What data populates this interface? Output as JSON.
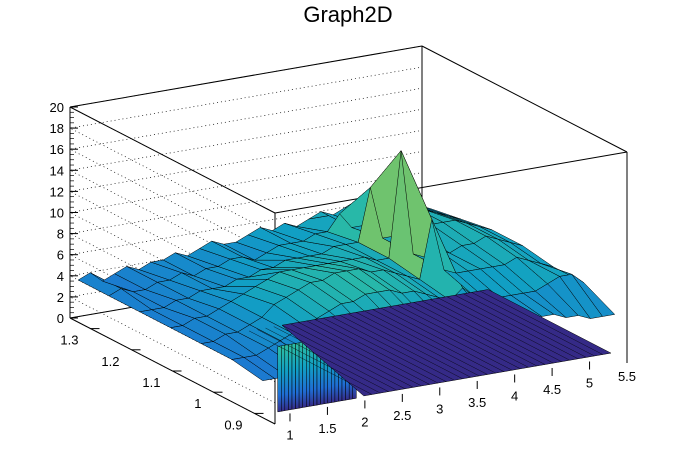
{
  "chart_data": {
    "type": "surface",
    "title": "Graph2D",
    "x_ticks": [
      "1",
      "1.5",
      "2",
      "2.5",
      "3",
      "3.5",
      "4",
      "4.5",
      "5",
      "5.5"
    ],
    "y_ticks": [
      "0.9",
      "1",
      "1.1",
      "1.2",
      "1.3"
    ],
    "z_ticks": [
      "0",
      "2",
      "4",
      "6",
      "8",
      "10",
      "12",
      "14",
      "16",
      "18",
      "20"
    ],
    "xlim": [
      0.8,
      5.5
    ],
    "ylim": [
      0.85,
      1.35
    ],
    "zlim": [
      0,
      20
    ],
    "colormap": [
      "#352a87",
      "#1f6dd4",
      "#119fc4",
      "#2ebfa1",
      "#9dc64a",
      "#f3c52d",
      "#f9fb0e"
    ],
    "grid": true,
    "surface_z_rows": [
      [
        4,
        4.5,
        3.5,
        4,
        4.5,
        4,
        4.5,
        4.5,
        5,
        4.5,
        5,
        5.5,
        5,
        5,
        5.5,
        6,
        5.5,
        6,
        5.5,
        6,
        6.5,
        6,
        6.5,
        7,
        6.5,
        6.5,
        7,
        6,
        5.5,
        5
      ],
      [
        4,
        4.5,
        4,
        4,
        4.5,
        4.5,
        5,
        4.5,
        5,
        5,
        5.5,
        5.5,
        5,
        5.5,
        6,
        6,
        6,
        6.5,
        6.5,
        8,
        6.5,
        6.5,
        7,
        7,
        7,
        7.5,
        7,
        6.5,
        6,
        5.5
      ],
      [
        4,
        4,
        4,
        4.5,
        4.5,
        5,
        5,
        5,
        5.5,
        5.5,
        6,
        6,
        6.5,
        6.5,
        6.5,
        6.5,
        7,
        7,
        7,
        12,
        7,
        7,
        7,
        7,
        7.5,
        7.5,
        7.5,
        7,
        6.5,
        6
      ],
      [
        4,
        4,
        4.5,
        4.5,
        5,
        5.5,
        6,
        6.5,
        7,
        7.5,
        7.5,
        7.5,
        7.5,
        7.5,
        7.5,
        7.5,
        7.5,
        7,
        7,
        17,
        7,
        6.5,
        7,
        6.5,
        7,
        7,
        7.5,
        7,
        6.5,
        6
      ],
      [
        4,
        4,
        4.5,
        4.5,
        5,
        5.5,
        6.5,
        7,
        7.5,
        8,
        8,
        8.5,
        8.5,
        8.5,
        8,
        8,
        7.5,
        7,
        6.5,
        12,
        7,
        6.5,
        6.5,
        6.5,
        6.5,
        6.5,
        7,
        6.5,
        6,
        5.5
      ],
      [
        4,
        4,
        4,
        4.5,
        5,
        5.5,
        6,
        6.5,
        7,
        7.5,
        7.5,
        8,
        8,
        8,
        7.5,
        7.5,
        7,
        6.5,
        6,
        7,
        6,
        5.5,
        5.5,
        5.5,
        5.5,
        5.5,
        6,
        6.5,
        6.5,
        5.5
      ],
      [
        3.5,
        3.5,
        3.5,
        4,
        4,
        4.5,
        5,
        5.5,
        6,
        6,
        6.5,
        6.5,
        6.5,
        6.5,
        6,
        6,
        6,
        5.5,
        5,
        5,
        5,
        5,
        5,
        5,
        5,
        4.5,
        4.5,
        4,
        4,
        4
      ]
    ]
  }
}
